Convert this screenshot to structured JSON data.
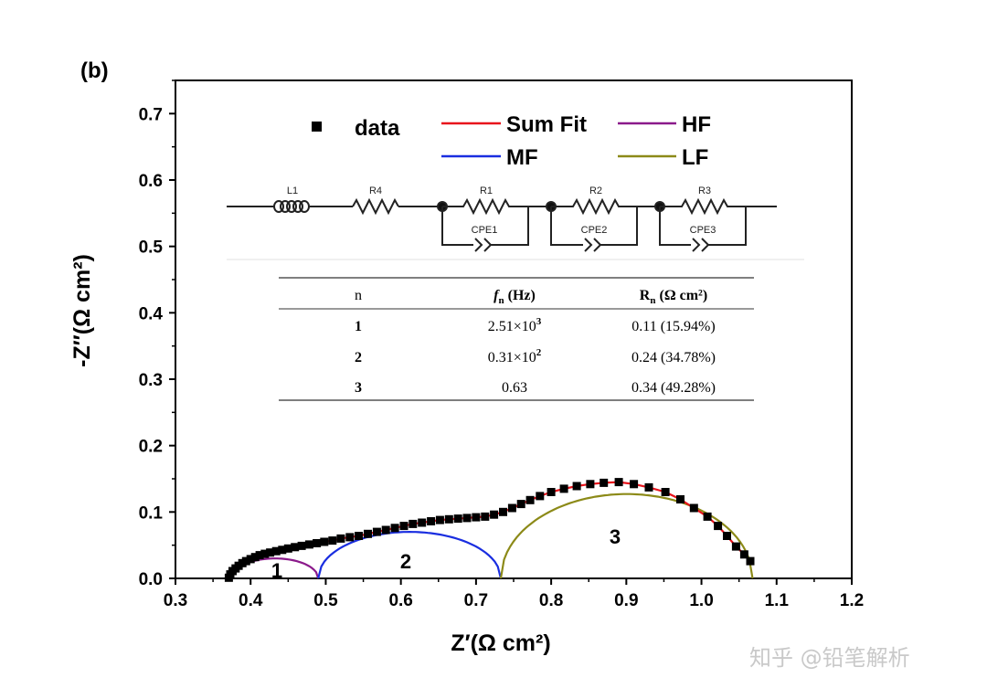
{
  "panel_label": "(b)",
  "watermark": "知乎 @铅笔解析",
  "chart_data": {
    "type": "scatter",
    "xlabel": "Z′(Ω cm²)",
    "ylabel": "-Z″(Ω cm²)",
    "xlim": [
      0.3,
      1.2
    ],
    "ylim": [
      0.0,
      0.75
    ],
    "xticks": [
      "0.3",
      "0.4",
      "0.5",
      "0.6",
      "0.7",
      "0.8",
      "0.9",
      "1.0",
      "1.1",
      "1.2"
    ],
    "yticks": [
      "0.0",
      "0.1",
      "0.2",
      "0.3",
      "0.4",
      "0.5",
      "0.6",
      "0.7"
    ],
    "legend": {
      "placement": "top",
      "data": "data",
      "sum_fit": "Sum Fit",
      "hf": "HF",
      "mf": "MF",
      "lf": "LF"
    },
    "colors": {
      "data": "#000000",
      "sum_fit": "#e8141c",
      "hf": "#8b1a8b",
      "mf": "#1a2ee0",
      "lf": "#8c8a18"
    },
    "arc_labels": [
      "1",
      "2",
      "3"
    ],
    "data_points": [
      [
        0.371,
        0.001
      ],
      [
        0.373,
        0.006
      ],
      [
        0.376,
        0.011
      ],
      [
        0.38,
        0.015
      ],
      [
        0.384,
        0.019
      ],
      [
        0.389,
        0.023
      ],
      [
        0.394,
        0.026
      ],
      [
        0.4,
        0.029
      ],
      [
        0.406,
        0.032
      ],
      [
        0.412,
        0.035
      ],
      [
        0.419,
        0.037
      ],
      [
        0.426,
        0.039
      ],
      [
        0.434,
        0.041
      ],
      [
        0.442,
        0.043
      ],
      [
        0.45,
        0.045
      ],
      [
        0.459,
        0.047
      ],
      [
        0.468,
        0.049
      ],
      [
        0.478,
        0.051
      ],
      [
        0.488,
        0.053
      ],
      [
        0.498,
        0.055
      ],
      [
        0.509,
        0.057
      ],
      [
        0.52,
        0.06
      ],
      [
        0.532,
        0.062
      ],
      [
        0.544,
        0.064
      ],
      [
        0.556,
        0.067
      ],
      [
        0.568,
        0.07
      ],
      [
        0.58,
        0.073
      ],
      [
        0.592,
        0.076
      ],
      [
        0.604,
        0.079
      ],
      [
        0.616,
        0.082
      ],
      [
        0.628,
        0.084
      ],
      [
        0.64,
        0.086
      ],
      [
        0.652,
        0.088
      ],
      [
        0.664,
        0.089
      ],
      [
        0.676,
        0.09
      ],
      [
        0.688,
        0.091
      ],
      [
        0.7,
        0.092
      ],
      [
        0.712,
        0.093
      ],
      [
        0.724,
        0.096
      ],
      [
        0.736,
        0.1
      ],
      [
        0.748,
        0.106
      ],
      [
        0.76,
        0.112
      ],
      [
        0.772,
        0.118
      ],
      [
        0.785,
        0.124
      ],
      [
        0.8,
        0.13
      ],
      [
        0.817,
        0.135
      ],
      [
        0.834,
        0.139
      ],
      [
        0.852,
        0.142
      ],
      [
        0.87,
        0.144
      ],
      [
        0.89,
        0.145
      ],
      [
        0.91,
        0.142
      ],
      [
        0.93,
        0.137
      ],
      [
        0.952,
        0.13
      ],
      [
        0.972,
        0.119
      ],
      [
        0.99,
        0.106
      ],
      [
        1.008,
        0.093
      ],
      [
        1.022,
        0.079
      ],
      [
        1.034,
        0.064
      ],
      [
        1.046,
        0.048
      ],
      [
        1.057,
        0.036
      ],
      [
        1.065,
        0.026
      ]
    ],
    "circuit": {
      "elements": [
        "L1",
        "R4",
        "R1",
        "CPE1",
        "R2",
        "CPE2",
        "R3",
        "CPE3"
      ]
    },
    "table": {
      "headers": {
        "n": "n",
        "f_main": "f",
        "f_sub": "n",
        "f_unit": " (Hz)",
        "r_main": "R",
        "r_sub": "n",
        "r_unit": " (Ω cm²)"
      },
      "rows": [
        {
          "n": "1",
          "f_base": "2.51×10",
          "f_exp": "3",
          "r": "0.11 (15.94%)"
        },
        {
          "n": "2",
          "f_base": "0.31×10",
          "f_exp": "2",
          "r": "0.24 (34.78%)"
        },
        {
          "n": "3",
          "f_base": "0.63",
          "f_exp": "",
          "r": "0.34 (49.28%)"
        }
      ]
    }
  }
}
